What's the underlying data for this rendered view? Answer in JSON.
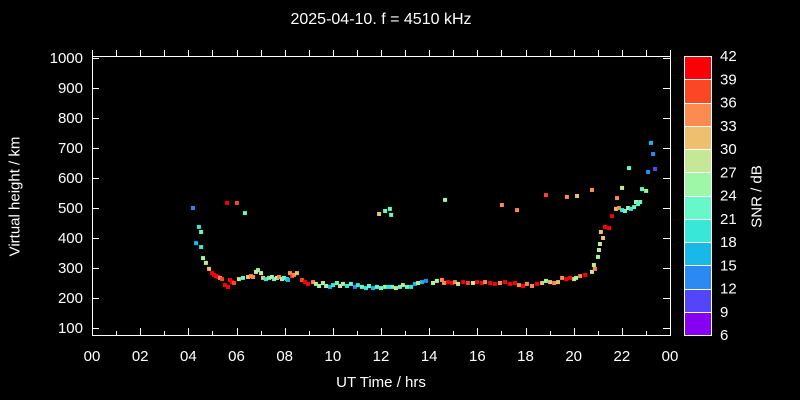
{
  "title": "2025-04-10. f = 4510 kHz",
  "chart_data": {
    "type": "scatter",
    "title": "2025-04-10. f = 4510 kHz",
    "xlabel": "UT Time / hrs",
    "ylabel": "Virtual height / km",
    "xlim": [
      0,
      24
    ],
    "ylim": [
      100,
      1000
    ],
    "x_major_tick_hours": [
      0,
      2,
      4,
      6,
      8,
      10,
      12,
      14,
      16,
      18,
      20,
      22,
      24
    ],
    "x_tick_labels": [
      "00",
      "02",
      "04",
      "06",
      "08",
      "10",
      "12",
      "14",
      "16",
      "18",
      "20",
      "22",
      "00"
    ],
    "x_minor_tick_step_hours": 1,
    "y_tick_values": [
      100,
      200,
      300,
      400,
      500,
      600,
      700,
      800,
      900,
      1000
    ],
    "grid": "off",
    "background_color": "#000000",
    "axis_color": "#ffffff",
    "marker": "square",
    "points_format": "[ut_hour, virtual_height_km, snr_db]",
    "points": [
      [
        4.19,
        500,
        13
      ],
      [
        4.32,
        383,
        16
      ],
      [
        4.44,
        437,
        19
      ],
      [
        4.53,
        420,
        22
      ],
      [
        4.53,
        370,
        19
      ],
      [
        4.61,
        333,
        25
      ],
      [
        4.73,
        317,
        28
      ],
      [
        4.86,
        297,
        31
      ],
      [
        4.98,
        283,
        40
      ],
      [
        5.07,
        277,
        40
      ],
      [
        5.15,
        273,
        40
      ],
      [
        5.23,
        270,
        40
      ],
      [
        5.32,
        267,
        34
      ],
      [
        5.4,
        263,
        37
      ],
      [
        5.52,
        243,
        40
      ],
      [
        5.61,
        517,
        40
      ],
      [
        5.65,
        237,
        40
      ],
      [
        5.73,
        260,
        40
      ],
      [
        5.81,
        253,
        40
      ],
      [
        5.9,
        250,
        37
      ],
      [
        6.02,
        517,
        37
      ],
      [
        6.1,
        263,
        28
      ],
      [
        6.27,
        267,
        22
      ],
      [
        6.35,
        483,
        22
      ],
      [
        6.48,
        270,
        31
      ],
      [
        6.6,
        273,
        34
      ],
      [
        6.69,
        270,
        34
      ],
      [
        6.81,
        287,
        28
      ],
      [
        6.89,
        293,
        25
      ],
      [
        7.02,
        283,
        28
      ],
      [
        7.1,
        267,
        31
      ],
      [
        7.22,
        263,
        19
      ],
      [
        7.35,
        267,
        22
      ],
      [
        7.47,
        270,
        28
      ],
      [
        7.56,
        263,
        22
      ],
      [
        7.68,
        267,
        28
      ],
      [
        7.77,
        270,
        34
      ],
      [
        7.89,
        263,
        28
      ],
      [
        7.97,
        267,
        22
      ],
      [
        8.1,
        263,
        19
      ],
      [
        8.14,
        260,
        16
      ],
      [
        8.22,
        283,
        34
      ],
      [
        8.31,
        273,
        37
      ],
      [
        8.39,
        277,
        34
      ],
      [
        8.51,
        283,
        31
      ],
      [
        8.72,
        260,
        37
      ],
      [
        8.85,
        253,
        40
      ],
      [
        8.97,
        247,
        40
      ],
      [
        9.18,
        253,
        34
      ],
      [
        9.3,
        247,
        28
      ],
      [
        9.43,
        240,
        25
      ],
      [
        9.59,
        250,
        28
      ],
      [
        9.72,
        240,
        25
      ],
      [
        9.88,
        237,
        16
      ],
      [
        10.01,
        243,
        19
      ],
      [
        10.17,
        250,
        22
      ],
      [
        10.3,
        240,
        28
      ],
      [
        10.42,
        247,
        25
      ],
      [
        10.59,
        240,
        19
      ],
      [
        10.75,
        247,
        22
      ],
      [
        10.92,
        237,
        13
      ],
      [
        11.04,
        243,
        19
      ],
      [
        11.21,
        237,
        22
      ],
      [
        11.38,
        233,
        19
      ],
      [
        11.5,
        240,
        22
      ],
      [
        11.67,
        233,
        16
      ],
      [
        11.83,
        237,
        22
      ],
      [
        11.92,
        480,
        31
      ],
      [
        12,
        233,
        22
      ],
      [
        12.17,
        490,
        22
      ],
      [
        12.17,
        237,
        25
      ],
      [
        12.29,
        237,
        19
      ],
      [
        12.37,
        497,
        22
      ],
      [
        12.42,
        477,
        22
      ],
      [
        12.46,
        237,
        22
      ],
      [
        12.62,
        233,
        28
      ],
      [
        12.79,
        237,
        22
      ],
      [
        12.91,
        243,
        28
      ],
      [
        13.08,
        237,
        22
      ],
      [
        13.25,
        237,
        19
      ],
      [
        13.41,
        247,
        16
      ],
      [
        13.54,
        250,
        28
      ],
      [
        13.7,
        253,
        16
      ],
      [
        13.87,
        257,
        13
      ],
      [
        14.16,
        250,
        25
      ],
      [
        14.32,
        257,
        28
      ],
      [
        14.53,
        260,
        34
      ],
      [
        14.62,
        250,
        34
      ],
      [
        14.66,
        527,
        25
      ],
      [
        14.78,
        253,
        40
      ],
      [
        14.95,
        250,
        40
      ],
      [
        15.07,
        253,
        34
      ],
      [
        15.2,
        247,
        28
      ],
      [
        15.41,
        253,
        40
      ],
      [
        15.61,
        250,
        37
      ],
      [
        15.82,
        250,
        28
      ],
      [
        15.99,
        253,
        40
      ],
      [
        16.19,
        250,
        40
      ],
      [
        16.32,
        253,
        34
      ],
      [
        16.53,
        250,
        40
      ],
      [
        16.73,
        247,
        40
      ],
      [
        16.94,
        250,
        34
      ],
      [
        17.02,
        510,
        34
      ],
      [
        17.15,
        253,
        40
      ],
      [
        17.36,
        247,
        40
      ],
      [
        17.56,
        250,
        40
      ],
      [
        17.65,
        493,
        34
      ],
      [
        17.73,
        243,
        34
      ],
      [
        17.9,
        240,
        40
      ],
      [
        18.06,
        247,
        34
      ],
      [
        18.27,
        240,
        34
      ],
      [
        18.48,
        247,
        40
      ],
      [
        18.69,
        250,
        31
      ],
      [
        18.85,
        257,
        25
      ],
      [
        18.85,
        543,
        37
      ],
      [
        19.02,
        253,
        31
      ],
      [
        19.19,
        250,
        34
      ],
      [
        19.35,
        253,
        31
      ],
      [
        19.52,
        267,
        34
      ],
      [
        19.69,
        263,
        40
      ],
      [
        19.72,
        537,
        34
      ],
      [
        19.85,
        267,
        40
      ],
      [
        20.02,
        263,
        28
      ],
      [
        20.1,
        267,
        25
      ],
      [
        20.14,
        540,
        31
      ],
      [
        20.27,
        273,
        34
      ],
      [
        20.48,
        277,
        40
      ],
      [
        20.76,
        287,
        28
      ],
      [
        20.76,
        560,
        34
      ],
      [
        20.84,
        310,
        28
      ],
      [
        20.88,
        297,
        34
      ],
      [
        21.01,
        337,
        25
      ],
      [
        21.05,
        360,
        28
      ],
      [
        21.09,
        380,
        28
      ],
      [
        21.13,
        420,
        31
      ],
      [
        21.22,
        400,
        31
      ],
      [
        21.3,
        437,
        40
      ],
      [
        21.47,
        433,
        40
      ],
      [
        21.59,
        473,
        40
      ],
      [
        21.76,
        497,
        31
      ],
      [
        21.8,
        533,
        34
      ],
      [
        21.88,
        500,
        34
      ],
      [
        22.01,
        493,
        19
      ],
      [
        22.01,
        567,
        28
      ],
      [
        22.13,
        490,
        22
      ],
      [
        22.26,
        500,
        25
      ],
      [
        22.3,
        633,
        22
      ],
      [
        22.38,
        497,
        19
      ],
      [
        22.51,
        503,
        22
      ],
      [
        22.59,
        520,
        25
      ],
      [
        22.67,
        513,
        22
      ],
      [
        22.76,
        520,
        22
      ],
      [
        22.84,
        563,
        22
      ],
      [
        23.01,
        557,
        25
      ],
      [
        23.09,
        620,
        13
      ],
      [
        23.21,
        717,
        16
      ],
      [
        23.3,
        680,
        13
      ],
      [
        23.38,
        630,
        10
      ]
    ],
    "colorbar": {
      "title": "SNR / dB",
      "min_db": 6,
      "max_db": 42,
      "step_db": 3,
      "tick_labels_top_to_bottom": [
        "42",
        "39",
        "36",
        "33",
        "30",
        "27",
        "24",
        "21",
        "18",
        "15",
        "12",
        "9",
        "6"
      ],
      "segment_colors_bottom_to_top": [
        "#8800f4",
        "#5246f8",
        "#2a89f2",
        "#18b9e9",
        "#38e7d8",
        "#66f8c9",
        "#9ef7a7",
        "#c6e698",
        "#eec06e",
        "#fb8b50",
        "#fb4723",
        "#fc0007"
      ]
    }
  }
}
